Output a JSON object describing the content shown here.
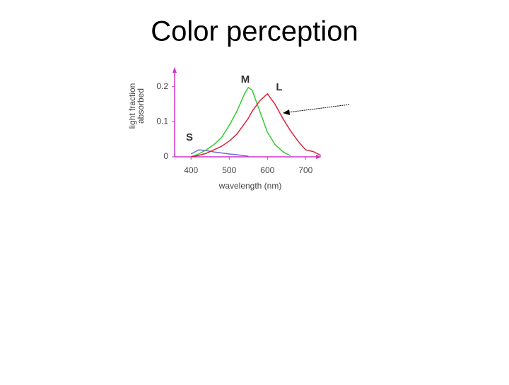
{
  "slide_title": "Color perception",
  "chart_data": {
    "type": "line",
    "xlabel": "wavelength (nm)",
    "ylabel_lines": [
      "light fraction",
      "absorbed"
    ],
    "x": [
      380,
      400,
      420,
      440,
      460,
      480,
      500,
      520,
      540,
      550,
      560,
      580,
      600,
      620,
      640,
      660,
      680,
      700,
      720,
      740
    ],
    "series": [
      {
        "name": "S",
        "color": "#6a6ae0",
        "values": [
          null,
          0.008,
          0.02,
          0.018,
          0.014,
          0.011,
          0.008,
          0.006,
          0.003,
          0.002,
          null,
          null,
          null,
          null,
          null,
          null,
          null,
          null,
          null,
          null
        ]
      },
      {
        "name": "M",
        "color": "#33cc33",
        "values": [
          null,
          0.0,
          0.008,
          0.02,
          0.035,
          0.055,
          0.09,
          0.13,
          0.18,
          0.198,
          0.19,
          0.13,
          0.07,
          0.035,
          0.015,
          0.003,
          null,
          null,
          null,
          null
        ]
      },
      {
        "name": "L",
        "color": "#e0203a",
        "values": [
          null,
          0.0,
          0.004,
          0.01,
          0.02,
          0.03,
          0.045,
          0.065,
          0.095,
          0.11,
          0.13,
          0.16,
          0.18,
          0.15,
          0.11,
          0.075,
          0.045,
          0.02,
          0.015,
          0.004
        ]
      }
    ],
    "xlim": [
      357,
      742
    ],
    "xticks": [
      400,
      500,
      600,
      700
    ],
    "ylim": [
      0,
      0.256
    ],
    "yticks": [
      0,
      0.1,
      0.2
    ],
    "axis_color": "#cc33cc"
  }
}
